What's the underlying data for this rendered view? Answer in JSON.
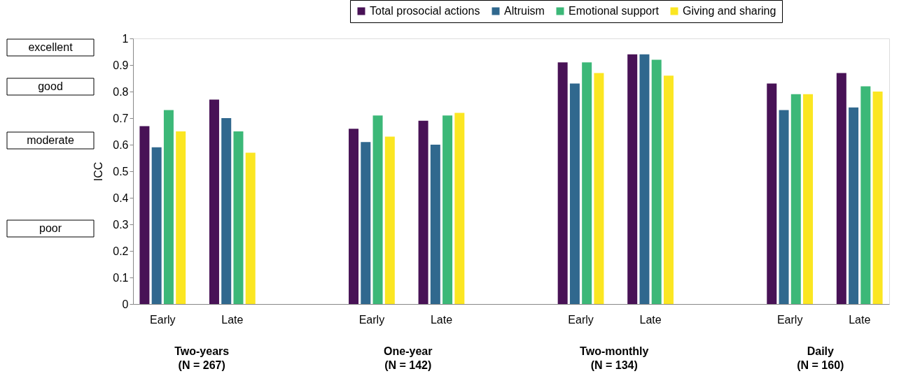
{
  "chart_data": {
    "type": "bar",
    "categories": [
      "Early",
      "Late",
      null,
      "Early",
      "Late",
      null,
      "Early",
      "Late",
      null,
      "Early",
      "Late"
    ],
    "series": [
      {
        "name": "Total prosocial actions",
        "color": "#481256",
        "values": [
          0.67,
          0.77,
          null,
          0.66,
          0.69,
          null,
          0.91,
          0.94,
          null,
          0.83,
          0.87
        ]
      },
      {
        "name": "Altruism",
        "color": "#30688e",
        "values": [
          0.59,
          0.7,
          null,
          0.61,
          0.6,
          null,
          0.83,
          0.94,
          null,
          0.73,
          0.74
        ]
      },
      {
        "name": "Emotional support",
        "color": "#3cb878",
        "values": [
          0.73,
          0.65,
          null,
          0.71,
          0.71,
          null,
          0.91,
          0.92,
          null,
          0.79,
          0.82
        ]
      },
      {
        "name": "Giving and sharing",
        "color": "#fbe622",
        "values": [
          0.65,
          0.57,
          null,
          0.63,
          0.72,
          null,
          0.87,
          0.86,
          null,
          0.79,
          0.8
        ]
      }
    ],
    "ylabel": "ICC",
    "ylim": [
      0,
      1
    ],
    "yticks": [
      0,
      0.1,
      0.2,
      0.3,
      0.4,
      0.5,
      0.6,
      0.7,
      0.8,
      0.9,
      1
    ],
    "annotations": [
      "Two-years\n(N = 267)",
      "One-year\n(N = 142)",
      "Two-monthly\n(N = 134)",
      "Daily\n(N = 160)",
      "excellent",
      "good",
      "moderate",
      "poor"
    ],
    "legend": "top right",
    "grid": false
  }
}
